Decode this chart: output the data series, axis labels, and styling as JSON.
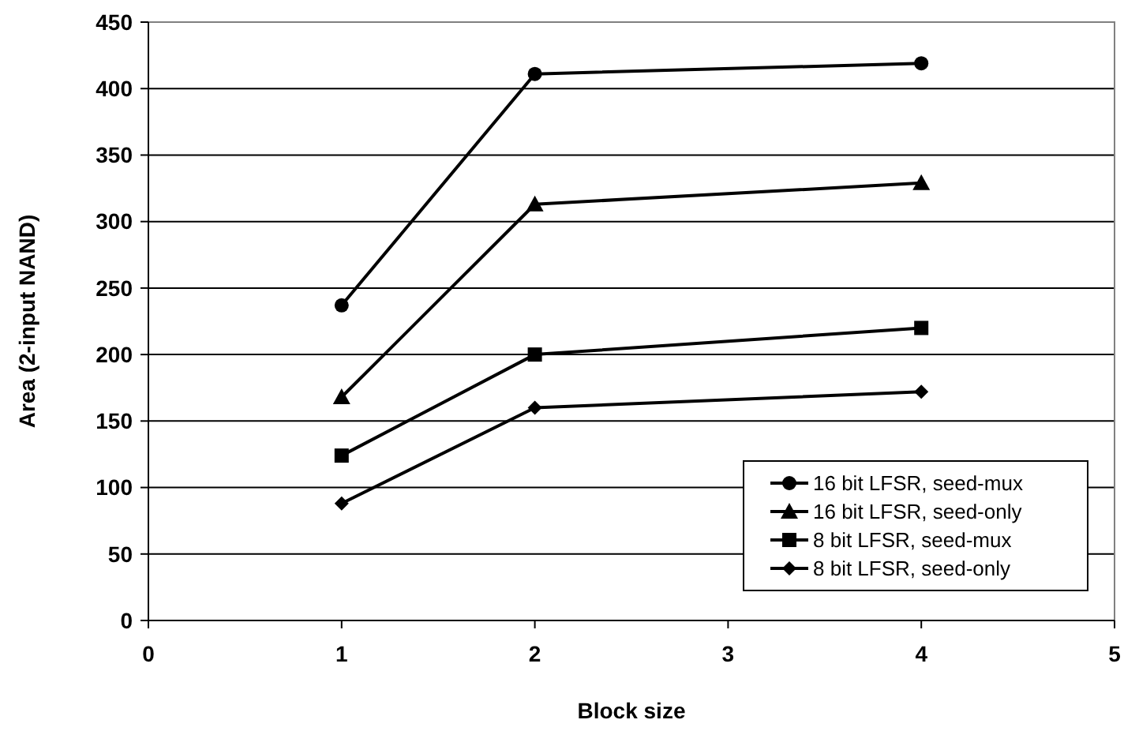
{
  "chart_data": {
    "type": "line",
    "xlabel": "Block size",
    "ylabel": "Area (2-input NAND)",
    "xlim": [
      0,
      5
    ],
    "xticks": [
      0,
      1,
      2,
      3,
      4,
      5
    ],
    "ylim": [
      0,
      450
    ],
    "yticks": [
      0,
      50,
      100,
      150,
      200,
      250,
      300,
      350,
      400,
      450
    ],
    "grid": "y",
    "legend": "bottom right",
    "line_style": "solid",
    "x": [
      1,
      2,
      4
    ],
    "series": [
      {
        "name": "16 bit LFSR, seed-mux",
        "color": "#000000",
        "marker": "circle",
        "values": [
          237,
          411,
          419
        ]
      },
      {
        "name": "16 bit LFSR, seed-only",
        "color": "#000000",
        "marker": "triangle",
        "values": [
          168,
          313,
          329
        ]
      },
      {
        "name": "8 bit LFSR, seed-mux",
        "color": "#000000",
        "marker": "square",
        "values": [
          124,
          200,
          220
        ]
      },
      {
        "name": "8 bit LFSR, seed-only",
        "color": "#000000",
        "marker": "diamond",
        "values": [
          88,
          160,
          172
        ]
      }
    ]
  }
}
